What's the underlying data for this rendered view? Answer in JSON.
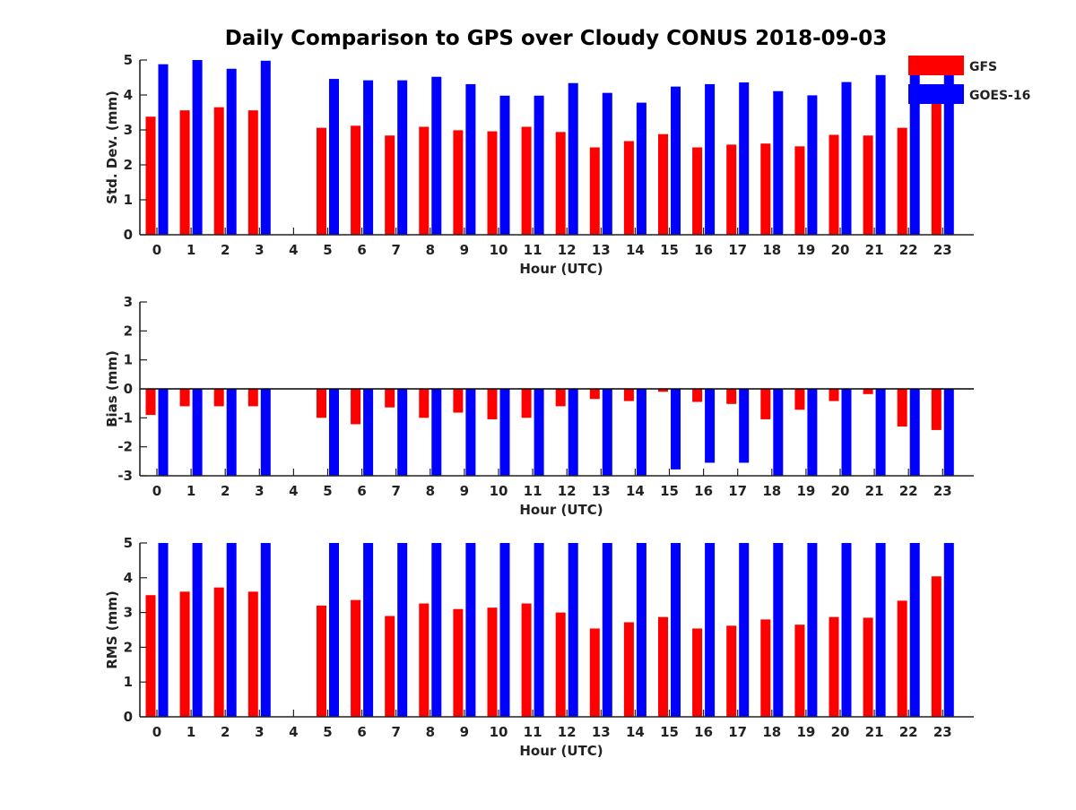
{
  "figure": {
    "title": "Daily Comparison to GPS over Cloudy CONUS 2018-09-03"
  },
  "legend": {
    "placement": "top-right",
    "entries": [
      {
        "name": "GFS",
        "color": "#ff0000"
      },
      {
        "name": "GOES-16",
        "color": "#0000ff"
      }
    ]
  },
  "chart_data": [
    {
      "type": "bar",
      "xlabel": "Hour (UTC)",
      "ylabel": "Std. Dev. (mm)",
      "ylim": [
        0,
        5
      ],
      "yticks": [
        0,
        1,
        2,
        3,
        4,
        5
      ],
      "categories": [
        "0",
        "1",
        "2",
        "3",
        "4",
        "5",
        "6",
        "7",
        "8",
        "9",
        "10",
        "11",
        "12",
        "13",
        "14",
        "15",
        "16",
        "17",
        "18",
        "19",
        "20",
        "21",
        "22",
        "23"
      ],
      "series": [
        {
          "name": "GFS",
          "color": "#ff0000",
          "values": [
            3.38,
            3.56,
            3.65,
            3.56,
            null,
            3.06,
            3.12,
            2.84,
            3.09,
            2.99,
            2.96,
            3.09,
            2.94,
            2.5,
            2.68,
            2.88,
            2.5,
            2.58,
            2.61,
            2.53,
            2.86,
            2.84,
            3.06,
            3.75
          ]
        },
        {
          "name": "GOES-16",
          "color": "#0000ff",
          "values": [
            4.88,
            5.0,
            4.75,
            4.98,
            null,
            4.46,
            4.42,
            4.42,
            4.52,
            4.31,
            3.98,
            3.98,
            4.34,
            4.06,
            3.78,
            4.24,
            4.31,
            4.36,
            4.11,
            3.99,
            4.37,
            4.57,
            4.82,
            4.64
          ]
        }
      ]
    },
    {
      "type": "bar",
      "xlabel": "Hour (UTC)",
      "ylabel": "Bias (mm)",
      "ylim": [
        -3,
        3
      ],
      "yticks": [
        -3,
        -2,
        -1,
        0,
        1,
        2,
        3
      ],
      "zero_line": true,
      "categories": [
        "0",
        "1",
        "2",
        "3",
        "4",
        "5",
        "6",
        "7",
        "8",
        "9",
        "10",
        "11",
        "12",
        "13",
        "14",
        "15",
        "16",
        "17",
        "18",
        "19",
        "20",
        "21",
        "22",
        "23"
      ],
      "series": [
        {
          "name": "GFS",
          "color": "#ff0000",
          "values": [
            -0.9,
            -0.6,
            -0.6,
            -0.6,
            null,
            -1.0,
            -1.22,
            -0.64,
            -1.0,
            -0.82,
            -1.05,
            -1.0,
            -0.6,
            -0.35,
            -0.42,
            -0.1,
            -0.45,
            -0.52,
            -1.05,
            -0.72,
            -0.42,
            -0.18,
            -1.3,
            -1.42
          ]
        },
        {
          "name": "GOES-16",
          "color": "#0000ff",
          "values": [
            -3.0,
            -3.0,
            -3.0,
            -3.0,
            null,
            -3.0,
            -3.0,
            -3.0,
            -3.0,
            -3.0,
            -3.0,
            -3.0,
            -3.0,
            -3.0,
            -3.0,
            -2.78,
            -2.55,
            -2.55,
            -3.0,
            -3.0,
            -3.0,
            -3.0,
            -3.0,
            -3.0
          ]
        }
      ]
    },
    {
      "type": "bar",
      "xlabel": "Hour (UTC)",
      "ylabel": "RMS (mm)",
      "ylim": [
        0,
        5
      ],
      "yticks": [
        0,
        1,
        2,
        3,
        4,
        5
      ],
      "categories": [
        "0",
        "1",
        "2",
        "3",
        "4",
        "5",
        "6",
        "7",
        "8",
        "9",
        "10",
        "11",
        "12",
        "13",
        "14",
        "15",
        "16",
        "17",
        "18",
        "19",
        "20",
        "21",
        "22",
        "23"
      ],
      "series": [
        {
          "name": "GFS",
          "color": "#ff0000",
          "values": [
            3.5,
            3.6,
            3.72,
            3.6,
            null,
            3.2,
            3.36,
            2.9,
            3.26,
            3.1,
            3.14,
            3.26,
            3.0,
            2.54,
            2.72,
            2.87,
            2.54,
            2.62,
            2.8,
            2.65,
            2.87,
            2.85,
            3.34,
            4.04
          ]
        },
        {
          "name": "GOES-16",
          "color": "#0000ff",
          "values": [
            5.0,
            5.0,
            5.0,
            5.0,
            null,
            5.0,
            5.0,
            5.0,
            5.0,
            5.0,
            5.0,
            5.0,
            5.0,
            5.0,
            5.0,
            5.0,
            5.0,
            5.0,
            5.0,
            5.0,
            5.0,
            5.0,
            5.0,
            5.0
          ]
        }
      ]
    }
  ]
}
